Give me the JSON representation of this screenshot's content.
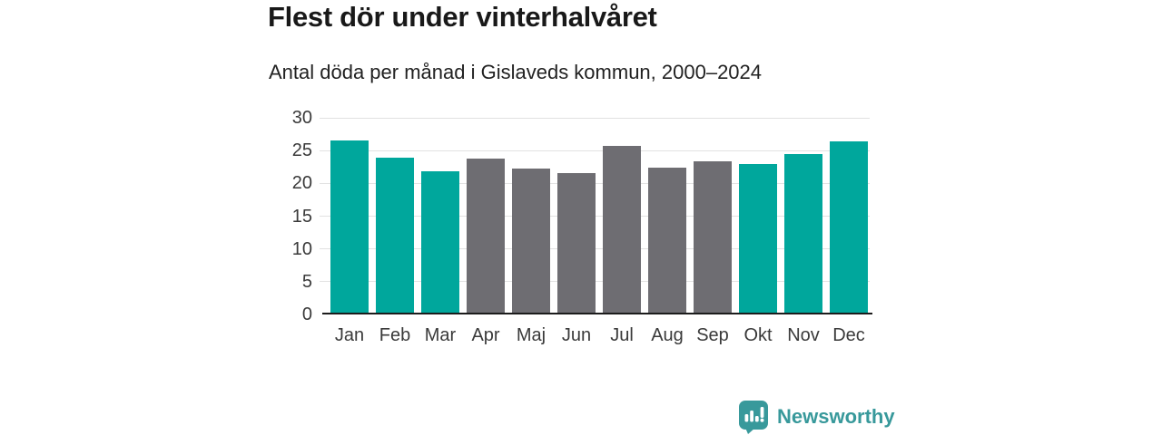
{
  "header": {
    "title": "Flest dör under vinterhalvåret",
    "subtitle": "Antal döda per månad i Gislaveds kommun, 2000–2024"
  },
  "chart_data": {
    "type": "bar",
    "title": "Flest dör under vinterhalvåret",
    "subtitle": "Antal döda per månad i Gislaveds kommun, 2000–2024",
    "categories": [
      "Jan",
      "Feb",
      "Mar",
      "Apr",
      "Maj",
      "Jun",
      "Jul",
      "Aug",
      "Sep",
      "Okt",
      "Nov",
      "Dec"
    ],
    "values": [
      26.6,
      23.9,
      21.8,
      23.8,
      22.3,
      21.6,
      25.7,
      22.4,
      23.4,
      22.9,
      24.5,
      26.4
    ],
    "bar_color_keys": [
      "teal",
      "teal",
      "teal",
      "gray",
      "gray",
      "gray",
      "gray",
      "gray",
      "gray",
      "teal",
      "teal",
      "teal"
    ],
    "colors": {
      "teal": "#00a79c",
      "gray": "#6e6d72"
    },
    "xlabel": "",
    "ylabel": "",
    "ylim": [
      0,
      30
    ],
    "yticks": [
      0,
      5,
      10,
      15,
      20,
      25,
      30
    ],
    "grid": true,
    "legend": false,
    "highlight_note": "winter months (Okt–Mar) in teal, summer months (Apr–Sep) in gray"
  },
  "footer": {
    "brand": "Newsworthy",
    "brand_color": "#38999b",
    "logo_icon": "bar-chart-speech-bubble"
  }
}
